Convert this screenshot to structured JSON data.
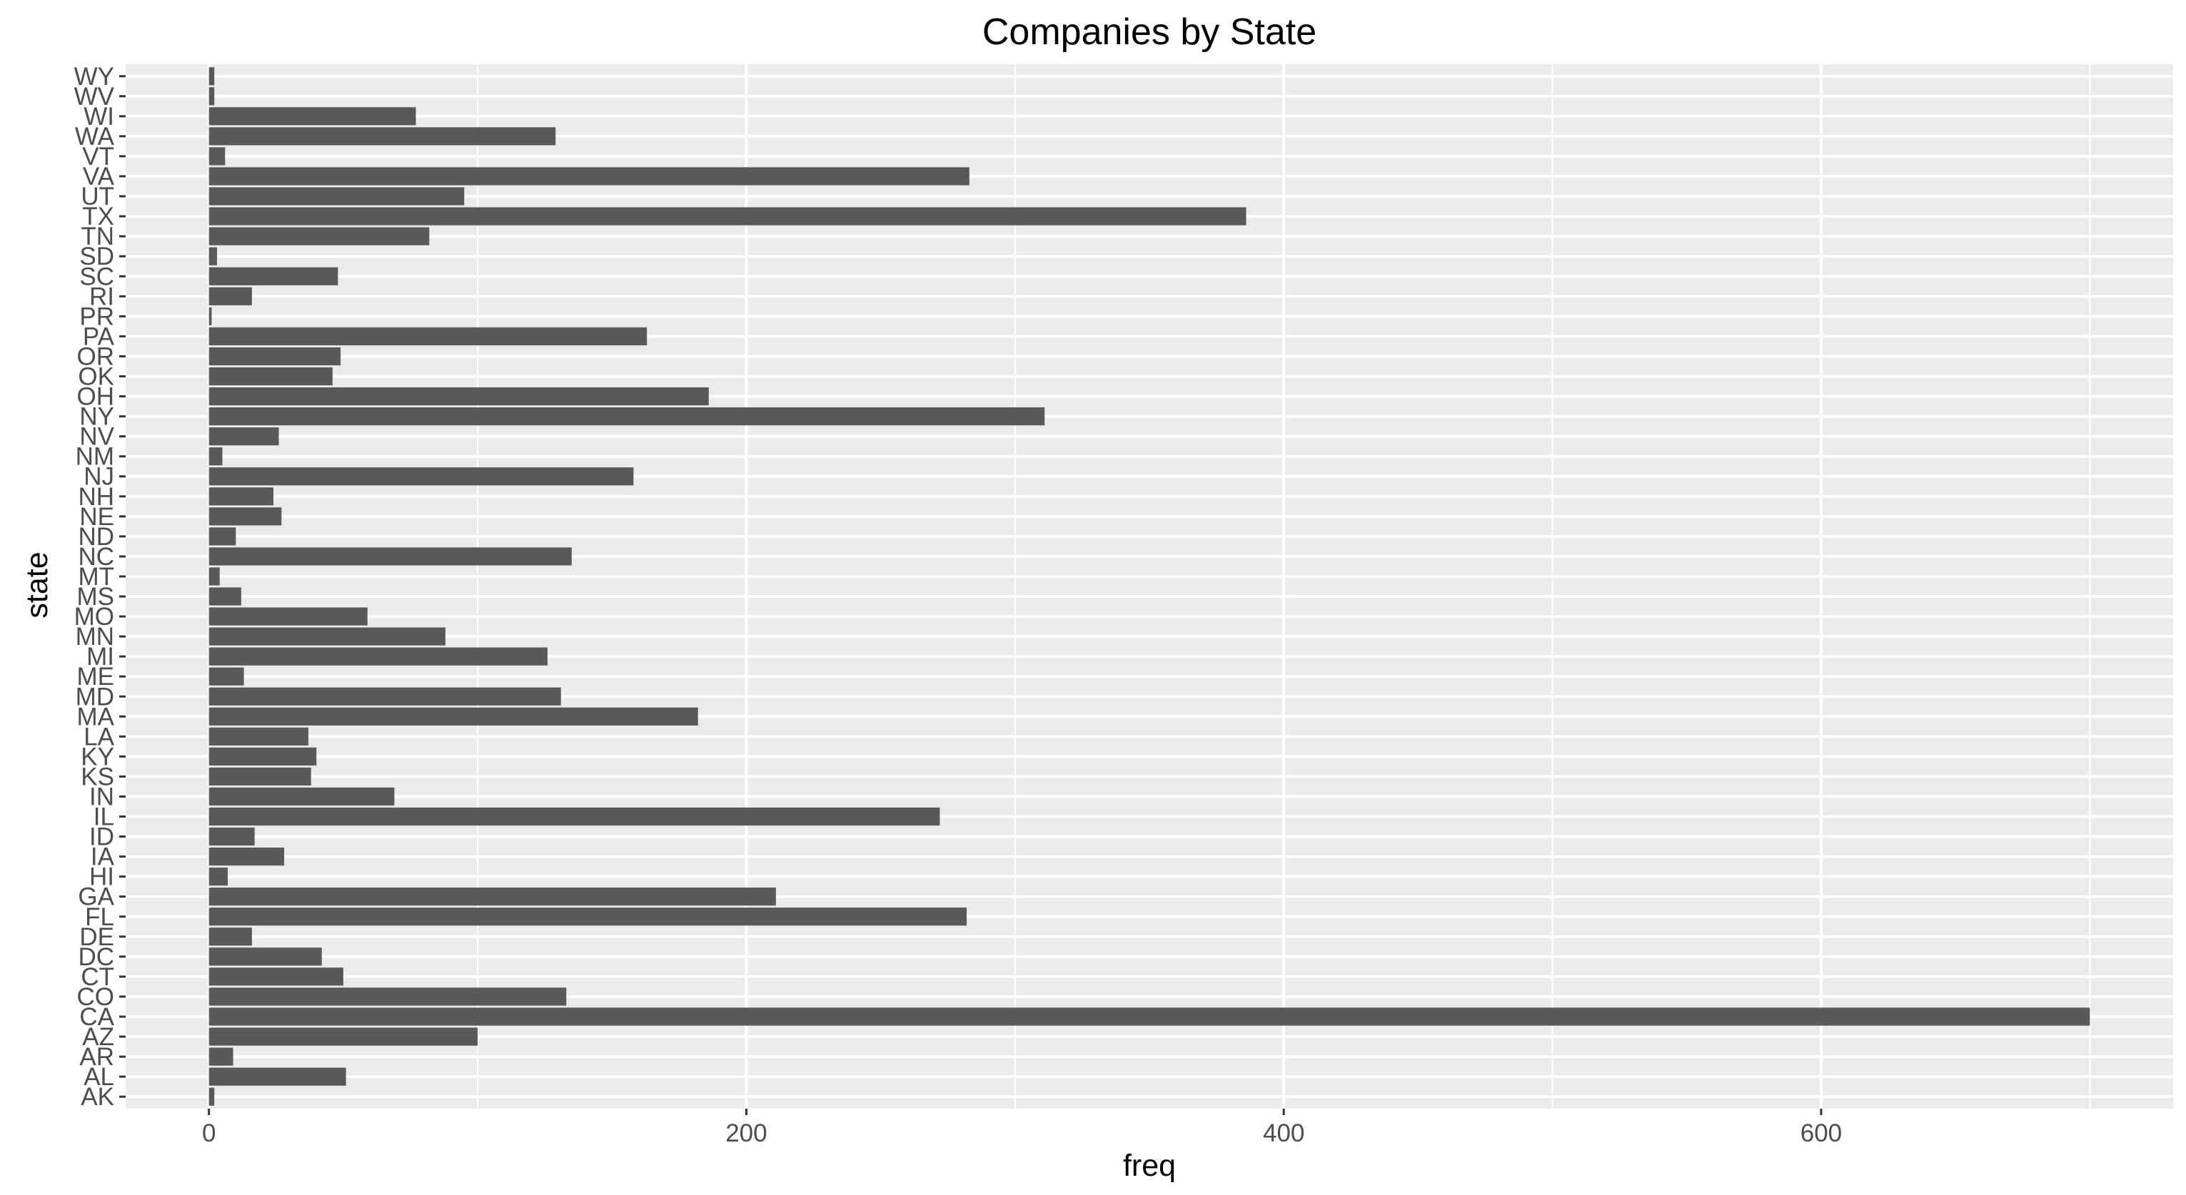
{
  "chart_data": {
    "type": "bar",
    "orientation": "horizontal",
    "title": "Companies by State",
    "xlabel": "freq",
    "ylabel": "state",
    "xlim": [
      -31,
      731
    ],
    "x_ticks": [
      0,
      200,
      400,
      600
    ],
    "grid": true,
    "legend": "none",
    "categories": [
      "AK",
      "AL",
      "AR",
      "AZ",
      "CA",
      "CO",
      "CT",
      "DC",
      "DE",
      "FL",
      "GA",
      "HI",
      "IA",
      "ID",
      "IL",
      "IN",
      "KS",
      "KY",
      "LA",
      "MA",
      "MD",
      "ME",
      "MI",
      "MN",
      "MO",
      "MS",
      "MT",
      "NC",
      "ND",
      "NE",
      "NH",
      "NJ",
      "NM",
      "NV",
      "NY",
      "OH",
      "OK",
      "OR",
      "PA",
      "PR",
      "RI",
      "SC",
      "SD",
      "TN",
      "TX",
      "UT",
      "VA",
      "VT",
      "WA",
      "WI",
      "WV",
      "WY"
    ],
    "values": [
      2,
      51,
      9,
      100,
      700,
      133,
      50,
      42,
      16,
      282,
      211,
      7,
      28,
      17,
      272,
      69,
      38,
      40,
      37,
      182,
      131,
      13,
      126,
      88,
      59,
      12,
      4,
      135,
      10,
      27,
      24,
      158,
      5,
      26,
      311,
      186,
      46,
      49,
      163,
      1,
      16,
      48,
      3,
      82,
      386,
      95,
      283,
      6,
      129,
      77,
      2,
      2
    ],
    "colors": {
      "panel_background": "#ebebeb",
      "grid_major": "#ffffff",
      "bar_fill": "#595959",
      "tick_text": "#4d4d4d",
      "title_text": "#000000"
    }
  }
}
